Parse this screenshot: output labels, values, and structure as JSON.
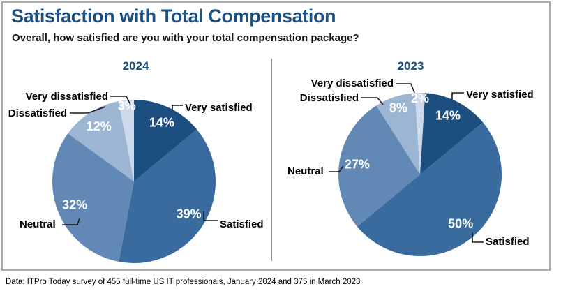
{
  "header": {
    "title": "Satisfaction with Total Compensation",
    "subtitle": "Overall, how satisfied are you with your total compensation package?"
  },
  "colors": {
    "accent_blue": "#1c5083",
    "slice_very_satisfied": "#1c4e80",
    "slice_satisfied": "#396b9e",
    "slice_neutral": "#6289b5",
    "slice_dissatisfied": "#9bb5d2",
    "slice_very_dissatisfied": "#cbd9ea",
    "percent_label": "#ffffff"
  },
  "chart_data": [
    {
      "type": "pie",
      "title": "2024",
      "categories": [
        "Very satisfied",
        "Satisfied",
        "Neutral",
        "Dissatisfied",
        "Very dissatisfied"
      ],
      "values": [
        14,
        39,
        32,
        12,
        3
      ],
      "value_labels": [
        "14%",
        "39%",
        "32%",
        "12%",
        "3%"
      ],
      "start_angle": "12 o'clock",
      "direction": "clockwise",
      "legend_position": "callout-labels"
    },
    {
      "type": "pie",
      "title": "2023",
      "categories": [
        "Very satisfied",
        "Satisfied",
        "Neutral",
        "Dissatisfied",
        "Very dissatisfied"
      ],
      "values": [
        14,
        50,
        27,
        8,
        2
      ],
      "value_labels": [
        "14%",
        "50%",
        "27%",
        "8%",
        "2%"
      ],
      "start_angle": "12 o'clock",
      "direction": "clockwise",
      "legend_position": "callout-labels"
    }
  ],
  "footer": {
    "source": "Data: ITPro Today survey of 455 full-time US IT professionals, January 2024 and 375 in March 2023"
  }
}
